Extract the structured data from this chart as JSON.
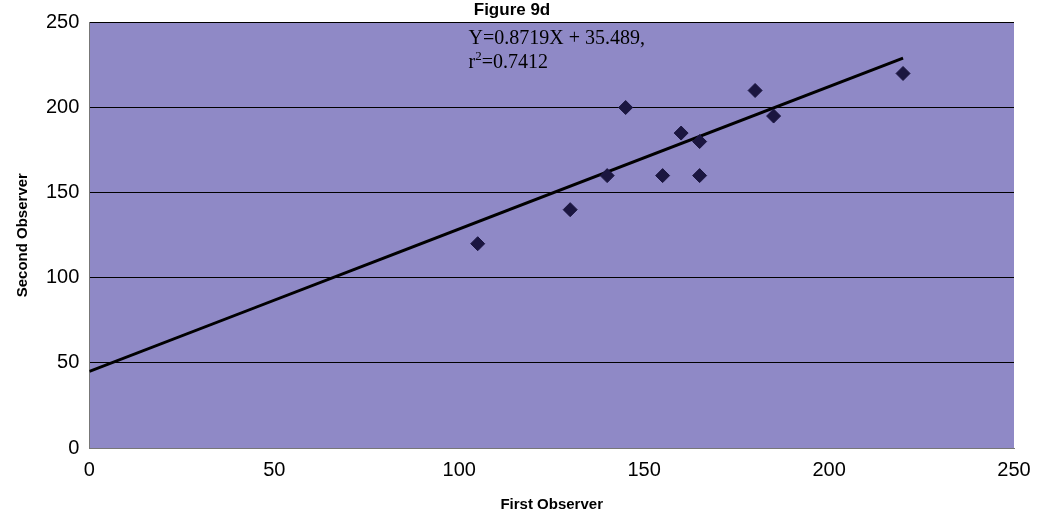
{
  "chart_data": {
    "type": "scatter",
    "title": "Figure 9d",
    "xlabel": "First Observer",
    "ylabel": "Second Observer",
    "annotations": [
      "Y=0.8719X + 35.489,",
      "r$^{2}$=0.7412"
    ],
    "series": [
      {
        "color": "#1b1640",
        "marker": "diamond",
        "x": [
          105,
          130,
          140,
          145,
          155,
          160,
          165,
          165,
          180,
          185,
          220
        ],
        "values": [
          120,
          140,
          160,
          200,
          160,
          185,
          180,
          160,
          210,
          195,
          220
        ]
      },
      {
        "type": "line",
        "color": "#000000",
        "marker": "none",
        "x": [
          0,
          220
        ],
        "values": [
          45,
          229
        ]
      }
    ],
    "xlim": [
      0,
      250
    ],
    "xticks": [
      0,
      50,
      100,
      150,
      200,
      250
    ],
    "ylim": [
      0,
      250
    ],
    "yticks": [
      0,
      50,
      100,
      150,
      200,
      250
    ],
    "grid": "y"
  }
}
